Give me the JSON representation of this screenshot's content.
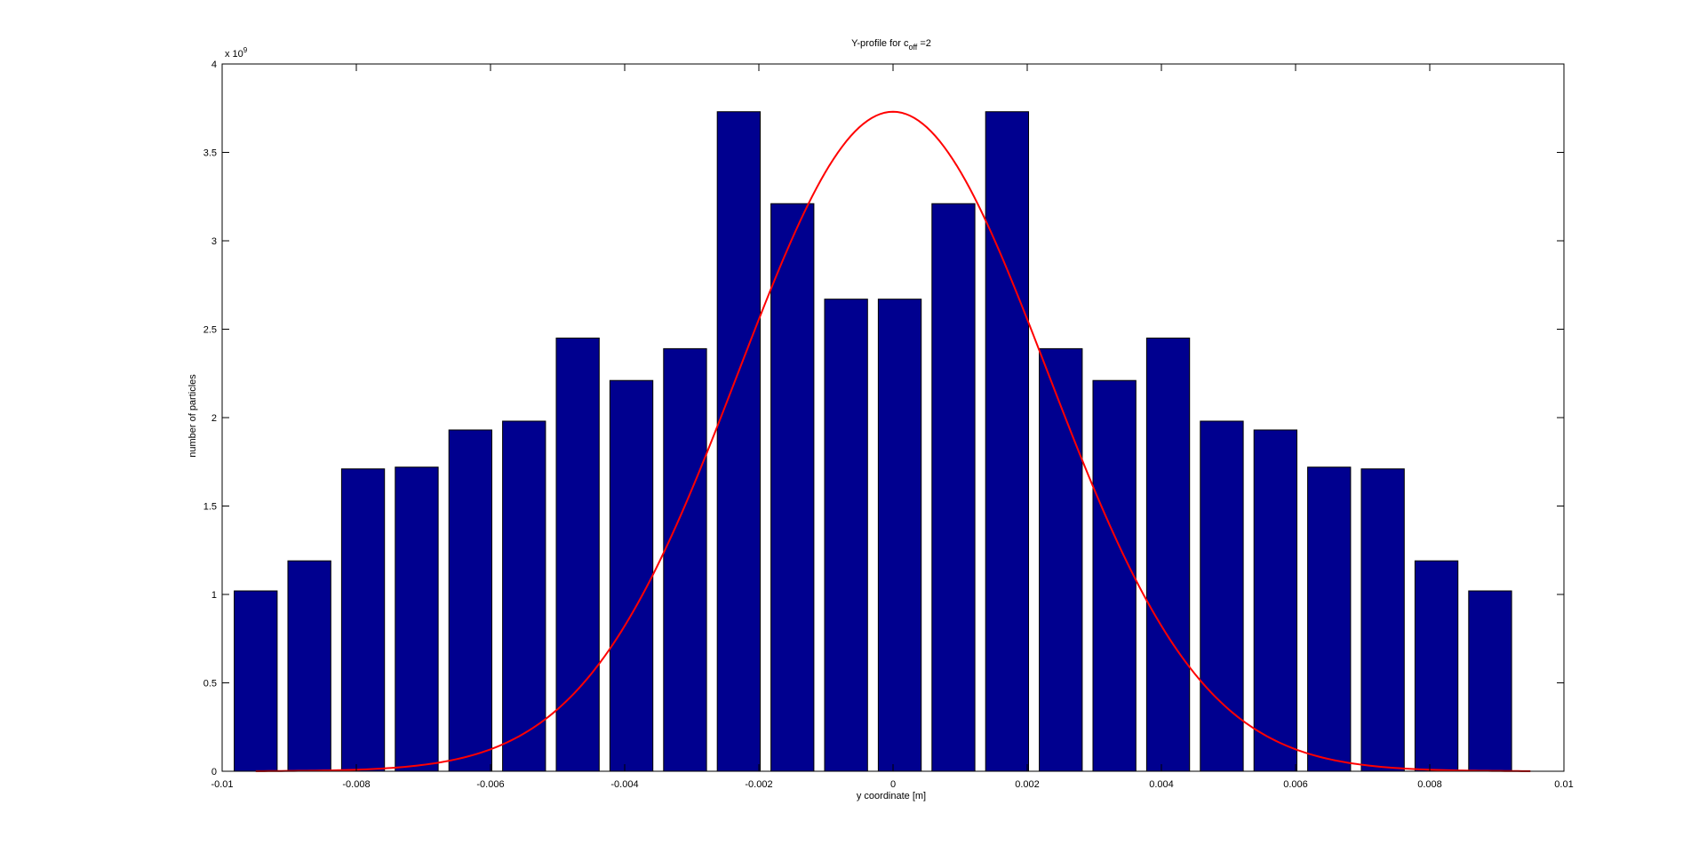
{
  "chart_data": {
    "type": "bar",
    "title": {
      "prefix": "Y-profile for c",
      "subscript": "off",
      "suffix": " =2"
    },
    "xlabel": "y coordinate [m]",
    "ylabel": "number of particles",
    "y_exponent_label": {
      "base": "x 10",
      "exponent": "9"
    },
    "xlim": [
      -0.01,
      0.01
    ],
    "ylim": [
      0,
      4
    ],
    "y_multiplier": 1000000000,
    "x_ticks": [
      {
        "value": -0.01,
        "label": "-0.01"
      },
      {
        "value": -0.008,
        "label": "-0.008"
      },
      {
        "value": -0.006,
        "label": "-0.006"
      },
      {
        "value": -0.004,
        "label": "-0.004"
      },
      {
        "value": -0.002,
        "label": "-0.002"
      },
      {
        "value": 0,
        "label": "0"
      },
      {
        "value": 0.002,
        "label": "0.002"
      },
      {
        "value": 0.004,
        "label": "0.004"
      },
      {
        "value": 0.006,
        "label": "0.006"
      },
      {
        "value": 0.008,
        "label": "0.008"
      },
      {
        "value": 0.01,
        "label": "0.01"
      }
    ],
    "y_ticks": [
      {
        "value": 0,
        "label": "0"
      },
      {
        "value": 0.5,
        "label": "0.5"
      },
      {
        "value": 1,
        "label": "1"
      },
      {
        "value": 1.5,
        "label": "1.5"
      },
      {
        "value": 2,
        "label": "2"
      },
      {
        "value": 2.5,
        "label": "2.5"
      },
      {
        "value": 3,
        "label": "3"
      },
      {
        "value": 3.5,
        "label": "3.5"
      },
      {
        "value": 4,
        "label": "4"
      }
    ],
    "bar_width": 0.00064,
    "bars": [
      {
        "x": -0.0095,
        "y": 1.02
      },
      {
        "x": -0.0087,
        "y": 1.19
      },
      {
        "x": -0.0079,
        "y": 1.71
      },
      {
        "x": -0.0071,
        "y": 1.72
      },
      {
        "x": -0.0063,
        "y": 1.93
      },
      {
        "x": -0.0055,
        "y": 1.98
      },
      {
        "x": -0.0047,
        "y": 2.45
      },
      {
        "x": -0.0039,
        "y": 2.21
      },
      {
        "x": -0.0031,
        "y": 2.39
      },
      {
        "x": -0.0023,
        "y": 3.73
      },
      {
        "x": -0.0015,
        "y": 3.21
      },
      {
        "x": -0.0007,
        "y": 2.67
      },
      {
        "x": 0.0001,
        "y": 2.67
      },
      {
        "x": 0.0009,
        "y": 3.21
      },
      {
        "x": 0.0017,
        "y": 3.73
      },
      {
        "x": 0.0025,
        "y": 2.39
      },
      {
        "x": 0.0033,
        "y": 2.21
      },
      {
        "x": 0.0041,
        "y": 2.45
      },
      {
        "x": 0.0049,
        "y": 1.98
      },
      {
        "x": 0.0057,
        "y": 1.93
      },
      {
        "x": 0.0065,
        "y": 1.72
      },
      {
        "x": 0.0073,
        "y": 1.71
      },
      {
        "x": 0.0081,
        "y": 1.19
      },
      {
        "x": 0.0089,
        "y": 1.02
      }
    ],
    "curve": {
      "type": "gaussian",
      "mean": 0,
      "sigma": 0.0023,
      "peak": 3.73,
      "x_range": [
        -0.0095,
        0.0095
      ]
    },
    "colors": {
      "bar_fill": "#00008f",
      "bar_edge": "#000000",
      "curve": "#ff0000",
      "axes": "#000000"
    },
    "grid": false,
    "legend": "none"
  }
}
